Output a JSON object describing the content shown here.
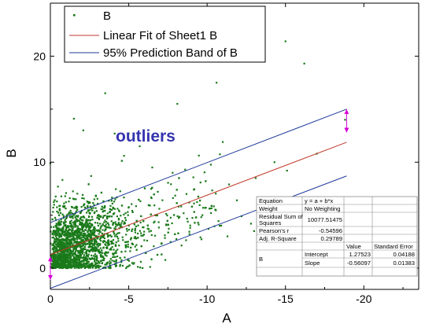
{
  "chart_data": {
    "type": "scatter",
    "xlabel": "A",
    "ylabel": "B",
    "x_reversed": true,
    "xlim": [
      0,
      -23.5
    ],
    "ylim": [
      -2,
      25
    ],
    "x_ticks": [
      {
        "value": 0,
        "label": "0"
      },
      {
        "value": -5,
        "label": "-5"
      },
      {
        "value": -10,
        "label": "-10"
      },
      {
        "value": -15,
        "label": "-15"
      },
      {
        "value": -20,
        "label": "-20"
      }
    ],
    "y_ticks": [
      {
        "value": 0,
        "label": "0"
      },
      {
        "value": 10,
        "label": "10"
      },
      {
        "value": 20,
        "label": "20"
      }
    ],
    "legend": {
      "placement": "top-left",
      "entries": [
        {
          "label": "B",
          "symbol": "point",
          "color": "#1a7a1a"
        },
        {
          "label": "Linear Fit of Sheet1 B",
          "symbol": "line",
          "color": "#c0392b"
        },
        {
          "label": "95% Prediction Band of B",
          "symbol": "line",
          "color": "#1f3a9a"
        }
      ]
    },
    "annotation": {
      "text": "outliers",
      "color": "#3535b0"
    },
    "scatter_series": {
      "name": "B",
      "color": "#1a7a1a",
      "approx_count": 2600,
      "points": [
        [
          0,
          9.9
        ],
        [
          -1.5,
          14.1
        ],
        [
          -2.1,
          13.0
        ],
        [
          -3.5,
          16.5
        ],
        [
          -4.1,
          12.7
        ],
        [
          -5.0,
          12.7
        ],
        [
          -8.1,
          15.5
        ],
        [
          -10.6,
          17.5
        ],
        [
          -11.0,
          11.9
        ],
        [
          -11.4,
          7.9
        ],
        [
          -11.9,
          6.4
        ],
        [
          -12.2,
          4.9
        ],
        [
          -12.8,
          4.2
        ],
        [
          -13.0,
          3.5
        ],
        [
          -14.3,
          10.0
        ],
        [
          -15.0,
          21.4
        ],
        [
          -15.1,
          9.2
        ],
        [
          -16.2,
          19.3
        ],
        [
          -17.0,
          10.8
        ],
        [
          -18.8,
          14.0
        ],
        [
          -11.3,
          3.0
        ],
        [
          -9.7,
          5.0
        ],
        [
          -9.3,
          4.8
        ],
        [
          -10.8,
          4.0
        ],
        [
          -13.1,
          8.5
        ],
        [
          -7.8,
          9.0
        ],
        [
          -8.6,
          9.3
        ],
        [
          -6.5,
          9.5
        ],
        [
          -5.7,
          11.5
        ],
        [
          -4.7,
          10.6
        ]
      ]
    },
    "linear_fit": {
      "name": "Linear Fit of Sheet1 B",
      "color": "#c0392b",
      "intercept": 1.27523,
      "slope": -0.56097,
      "x_range": [
        0,
        -18.9
      ]
    },
    "prediction_band": {
      "name": "95% Prediction Band of B",
      "color": "#1f3a9a",
      "upper": [
        [
          0,
          4.3
        ],
        [
          -18.9,
          15.0
        ]
      ],
      "lower": [
        [
          0,
          -1.9
        ],
        [
          -18.9,
          8.7
        ]
      ]
    },
    "markers": {
      "color": "#d400d4",
      "left_segment": {
        "x": 0,
        "y_from": 1.1,
        "y_to": -1.1
      },
      "right_segment": {
        "x": -18.9,
        "y_from": 15.0,
        "y_to": 12.8
      }
    }
  },
  "stats_table": {
    "rows": [
      {
        "label": "Equation",
        "value": "y = a + b*x"
      },
      {
        "label": "Weight",
        "value": "No Weighting"
      },
      {
        "label": "Residual Sum of Squares",
        "value": "10077.51475"
      },
      {
        "label": "Pearson's r",
        "value": "-0.54596"
      },
      {
        "label": "Adj. R-Square",
        "value": "0.29789"
      }
    ],
    "header": {
      "value": "Value",
      "error": "Standard Error"
    },
    "param_group": "B",
    "params": [
      {
        "name": "Intercept",
        "value": "1.27523",
        "error": "0.04188"
      },
      {
        "name": "Slope",
        "value": "-0.56097",
        "error": "0.01383"
      }
    ]
  }
}
